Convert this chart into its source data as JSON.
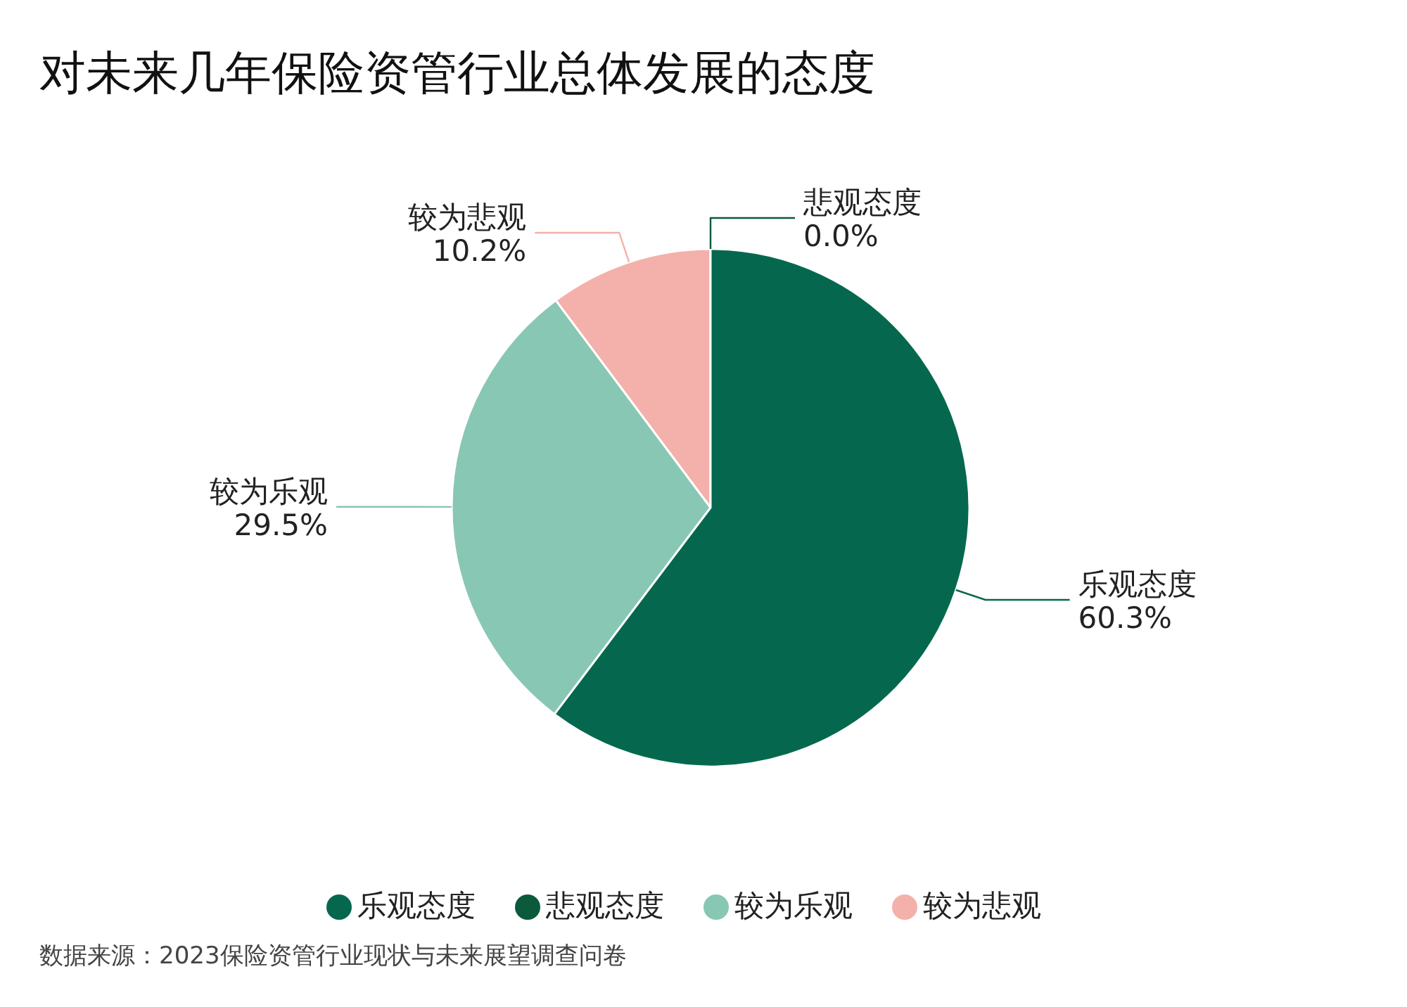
{
  "chart_data": {
    "type": "pie",
    "title": "对未来几年保险资管行业总体发展的态度",
    "categories": [
      "悲观态度",
      "较为悲观",
      "较为乐观",
      "乐观态度"
    ],
    "values": [
      0.0,
      10.2,
      29.5,
      60.3
    ],
    "colors": [
      "#0b5a3c",
      "#f4b0aa",
      "#88c7b4",
      "#05684e"
    ],
    "value_labels": [
      "0.0%",
      "10.2%",
      "29.5%",
      "60.3%"
    ],
    "legend": "bottom",
    "annotations": [
      "数据来源：2023保险资管行业现状与未来展望调查问卷"
    ]
  }
}
